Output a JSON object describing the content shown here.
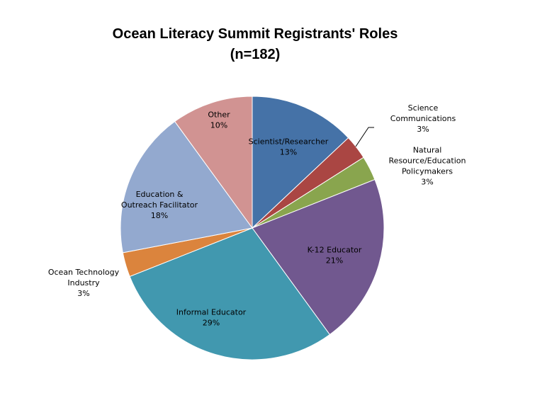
{
  "chart_data": {
    "type": "pie",
    "title": "Ocean Literacy Summit Registrants' Roles\n(n=182)",
    "categories": [
      "Scientist/Researcher",
      "Science\nCommunications",
      "Natural\nResource/Education\nPolicymakers",
      "K-12 Educator",
      "Informal Educator",
      "Ocean Technology\nIndustry",
      "Education &\nOutreach Facilitator",
      "Other"
    ],
    "values": [
      13,
      3,
      3,
      21,
      29,
      3,
      18,
      10
    ],
    "value_labels": [
      "13%",
      "3%",
      "3%",
      "21%",
      "29%",
      "3%",
      "18%",
      "10%"
    ],
    "colors": [
      "#4572a7",
      "#aa4643",
      "#89a54e",
      "#71588f",
      "#4198af",
      "#db843d",
      "#93a9cf",
      "#d19392"
    ]
  }
}
